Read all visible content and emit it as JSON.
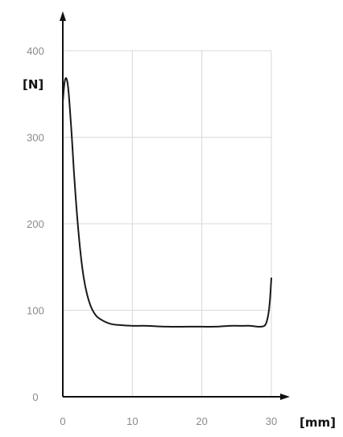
{
  "chart_data": {
    "type": "line",
    "title": "",
    "xlabel": "[mm]",
    "ylabel": "[N]",
    "xlim": [
      0,
      30
    ],
    "ylim": [
      0,
      400
    ],
    "xticks": [
      0,
      10,
      20,
      30
    ],
    "yticks": [
      0,
      100,
      200,
      300,
      400
    ],
    "grid": true,
    "legend": "none",
    "colors": {
      "line": "#1a1a1a",
      "axis": "#111111",
      "grid": "#d9d9d9",
      "ticks": "#8a8a8a"
    },
    "series": [
      {
        "x": [
          0,
          0.2,
          0.4,
          0.6,
          0.8,
          1.0,
          1.3,
          1.6,
          2.0,
          2.5,
          3.0,
          3.5,
          4.0,
          4.5,
          5.0,
          6.0,
          7.0,
          8.0,
          10.0,
          12.0,
          15.0,
          18.0,
          20.0,
          22.0,
          24.0,
          26.0,
          27.0,
          28.0,
          28.5,
          29.0,
          29.3,
          29.6,
          29.8,
          30.0
        ],
        "y": [
          340,
          360,
          368,
          366,
          355,
          335,
          300,
          260,
          215,
          170,
          138,
          118,
          105,
          97,
          92,
          87,
          84,
          83,
          82,
          82,
          81,
          81,
          81,
          81,
          82,
          82,
          82,
          81,
          81,
          82,
          86,
          97,
          112,
          137
        ]
      }
    ]
  }
}
